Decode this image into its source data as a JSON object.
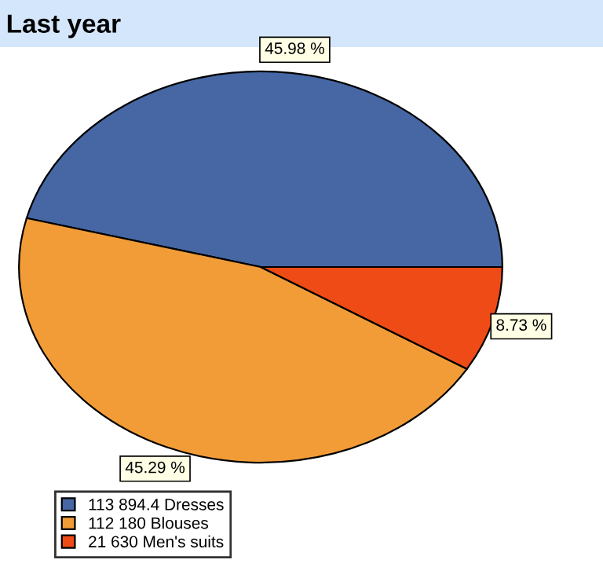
{
  "chart_data": {
    "type": "pie",
    "title": "Last year",
    "categories": [
      "113 894.4 Dresses",
      "112 180 Blouses",
      "21 630 Men's suits"
    ],
    "values": [
      45.98,
      45.29,
      8.73
    ],
    "colors": [
      "#4667a3",
      "#f29c38",
      "#ef4b17"
    ],
    "value_labels": [
      "45.98 %",
      "45.29 %",
      "8.73 %"
    ],
    "legend": "bottom left"
  }
}
